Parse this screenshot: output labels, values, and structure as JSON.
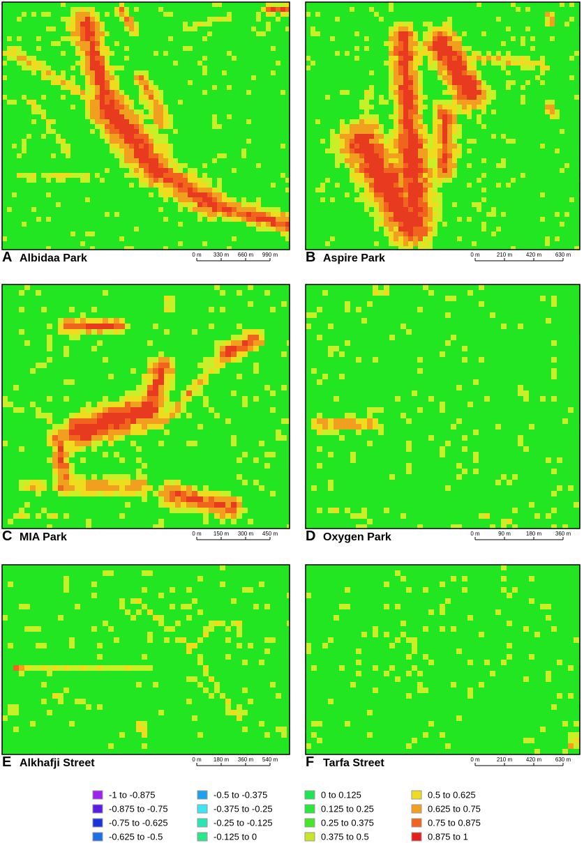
{
  "panels": [
    {
      "letter": "A",
      "name": "Albidaa Park",
      "scale": [
        "0 m",
        "330 m",
        "660 m",
        "990 m"
      ]
    },
    {
      "letter": "B",
      "name": "Aspire Park",
      "scale": [
        "0 m",
        "210 m",
        "420 m",
        "630 m"
      ]
    },
    {
      "letter": "C",
      "name": "MIA Park",
      "scale": [
        "0 m",
        "150 m",
        "300 m",
        "450 m"
      ]
    },
    {
      "letter": "D",
      "name": "Oxygen Park",
      "scale": [
        "0 m",
        "90 m",
        "180 m",
        "360 m"
      ]
    },
    {
      "letter": "E",
      "name": "Alkhafji Street",
      "scale": [
        "0 m",
        "180 m",
        "360 m",
        "540 m"
      ]
    },
    {
      "letter": "F",
      "name": "Tarfa Street",
      "scale": [
        "0 m",
        "210 m",
        "420 m",
        "630 m"
      ]
    }
  ],
  "legend": {
    "items": [
      {
        "label": "-1 to -0.875",
        "color": "#a020f0"
      },
      {
        "label": "-0.875 to -0.75",
        "color": "#5a1ee0"
      },
      {
        "label": "-0.75 to -0.625",
        "color": "#1e32dc"
      },
      {
        "label": "-0.625 to -0.5",
        "color": "#1e6ee6"
      },
      {
        "label": "-0.5 to -0.375",
        "color": "#1ea0f0"
      },
      {
        "label": "-0.375 to -0.25",
        "color": "#3ce6f0"
      },
      {
        "label": "-0.25 to -0.125",
        "color": "#28e6b4"
      },
      {
        "label": "-0.125 to 0",
        "color": "#28e68c"
      },
      {
        "label": "0 to 0.125",
        "color": "#1ee650"
      },
      {
        "label": "0.125 to 0.25",
        "color": "#2de63c"
      },
      {
        "label": "0.25 to 0.375",
        "color": "#46e628"
      },
      {
        "label": "0.375 to 0.5",
        "color": "#c8e628"
      },
      {
        "label": "0.5 to 0.625",
        "color": "#f0dc1e"
      },
      {
        "label": "0.625 to 0.75",
        "color": "#f0a01e"
      },
      {
        "label": "0.75 to 0.875",
        "color": "#f0641e"
      },
      {
        "label": "0.875 to 1",
        "color": "#e61e1e"
      }
    ]
  }
}
